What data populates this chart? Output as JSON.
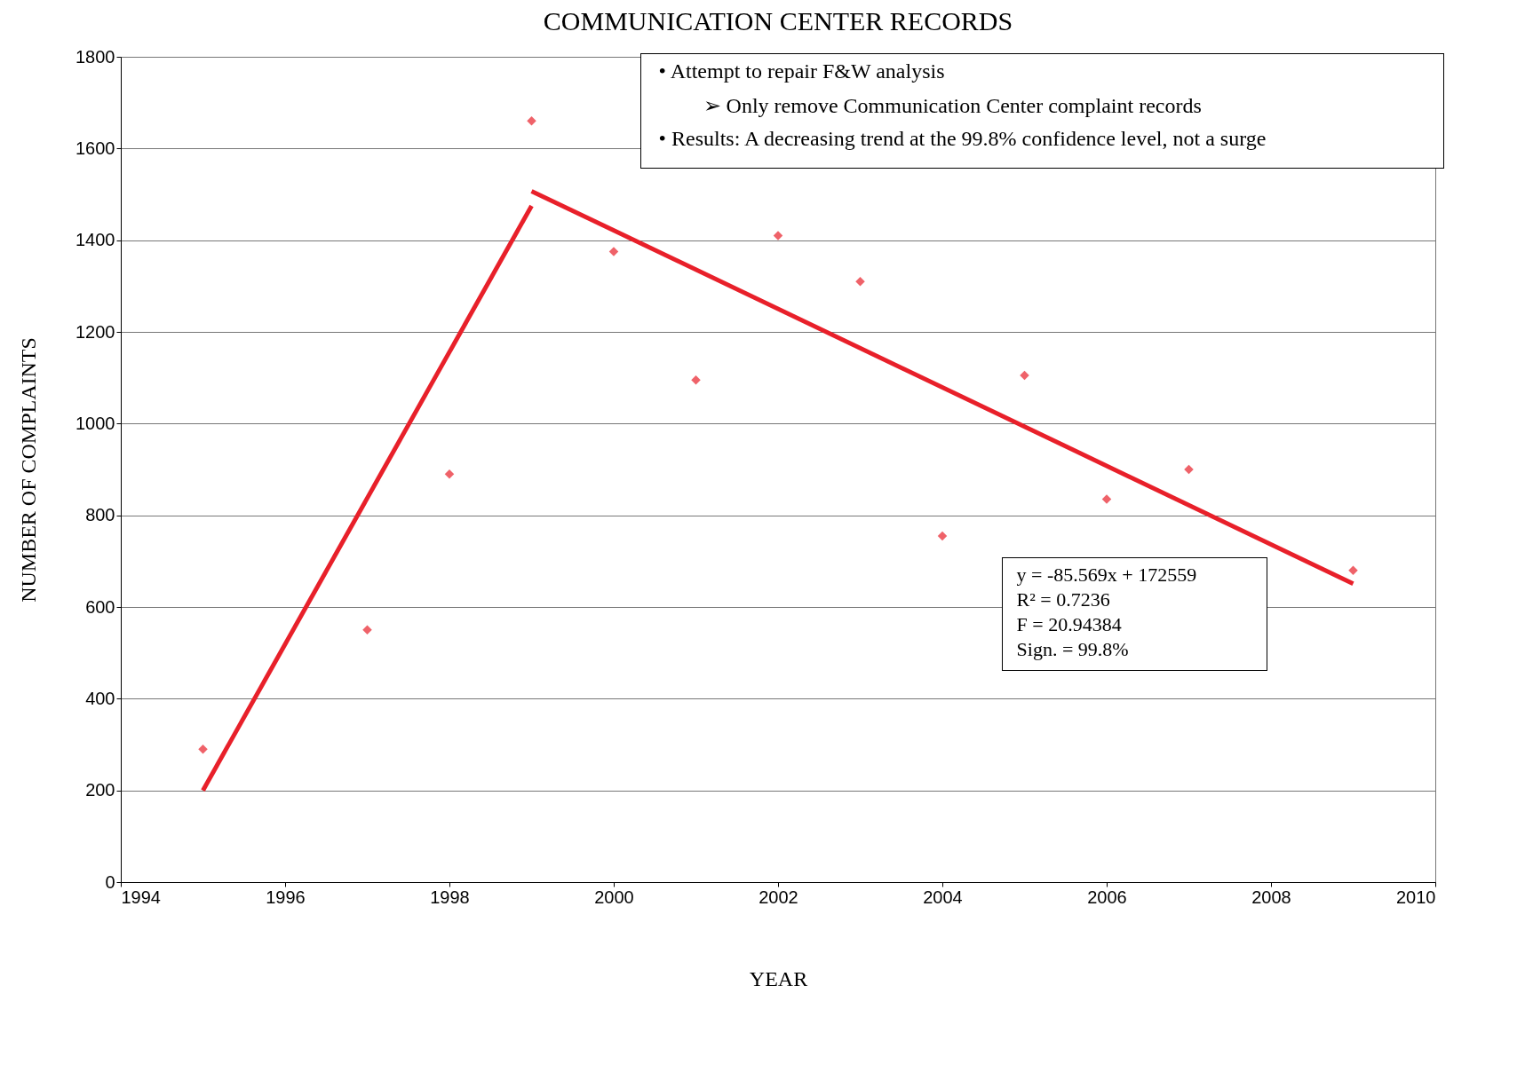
{
  "chart_data": {
    "type": "scatter",
    "title": "COMMUNICATION CENTER RECORDS",
    "xlabel": "YEAR",
    "ylabel": "NUMBER OF COMPLAINTS",
    "x": [
      1995,
      1997,
      1998,
      1999,
      2000,
      2001,
      2002,
      2003,
      2004,
      2005,
      2006,
      2007,
      2009
    ],
    "series": [
      {
        "color": "#e8202a",
        "marker": "diamond",
        "values": [
          290,
          550,
          890,
          1660,
          1375,
          1095,
          1410,
          1310,
          755,
          1105,
          835,
          900,
          680
        ]
      },
      {
        "type": "line",
        "color": "#e8202a",
        "x": [
          1995,
          1999
        ],
        "values": [
          200,
          1475
        ]
      },
      {
        "type": "line",
        "color": "#e8202a",
        "x": [
          1999,
          2009
        ],
        "values": [
          1507,
          651
        ]
      }
    ],
    "xlim": [
      1994,
      2010
    ],
    "xticks": [
      1994,
      1996,
      1998,
      2000,
      2002,
      2004,
      2006,
      2008,
      2010
    ],
    "ylim": [
      0,
      1800
    ],
    "yticks": [
      0,
      200,
      400,
      600,
      800,
      1000,
      1200,
      1400,
      1600,
      1800
    ],
    "grid": "y",
    "line_style": "solid",
    "annotations": [
      "• Attempt to repair F&W analysis",
      "➢ Only remove Communication Center complaint records",
      "• Results: A decreasing trend at the 99.8% confidence level, not a surge",
      "y = -85.569x + 172559",
      "R² = 0.7236",
      "F = 20.94384",
      "Sign. = 99.8%"
    ]
  }
}
